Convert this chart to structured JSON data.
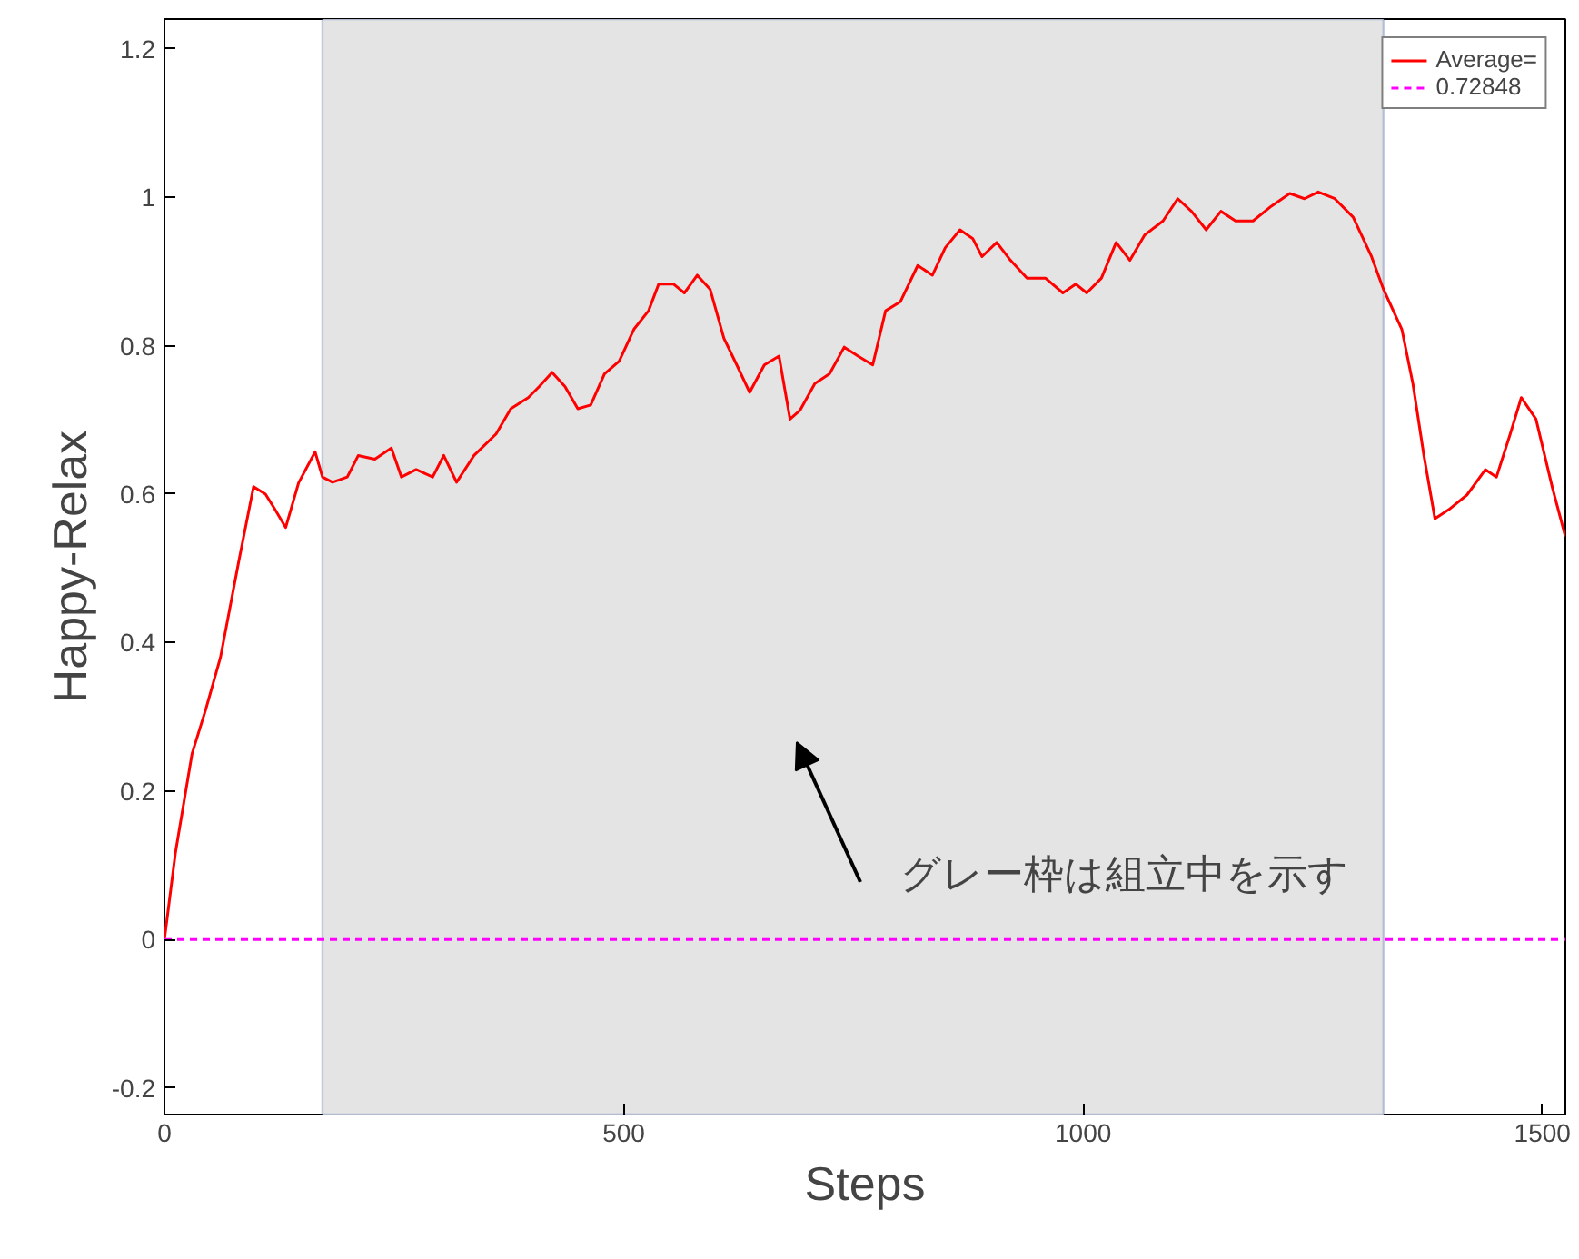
{
  "chart_data": {
    "type": "line",
    "xlabel": "Steps",
    "ylabel": "Happy-Relax",
    "xlim": [
      0,
      1525
    ],
    "ylim": [
      -0.236,
      1.24
    ],
    "xticks": [
      0,
      500,
      1000,
      1500
    ],
    "yticks": [
      -0.2,
      0,
      0.2,
      0.4,
      0.6,
      0.8,
      1,
      1.2
    ],
    "grid": false,
    "legend": "top right",
    "series": [
      {
        "name": "Average=",
        "color": "#ff0000",
        "line_style": "solid",
        "x": [
          0,
          12,
          30,
          45,
          61,
          81,
          97,
          110,
          120,
          132,
          146,
          164,
          172,
          183,
          199,
          211,
          229,
          247,
          258,
          274,
          292,
          304,
          318,
          337,
          361,
          377,
          396,
          408,
          422,
          436,
          450,
          464,
          479,
          495,
          511,
          527,
          538,
          554,
          566,
          580,
          594,
          609,
          623,
          637,
          653,
          669,
          681,
          692,
          708,
          724,
          740,
          755,
          771,
          785,
          801,
          820,
          836,
          850,
          866,
          880,
          890,
          906,
          921,
          939,
          959,
          978,
          992,
          1004,
          1020,
          1036,
          1051,
          1067,
          1087,
          1103,
          1118,
          1134,
          1150,
          1166,
          1185,
          1205,
          1225,
          1241,
          1256,
          1274,
          1294,
          1314,
          1327,
          1347,
          1359,
          1371,
          1383,
          1398,
          1418,
          1438,
          1450,
          1465,
          1477,
          1493,
          1511,
          1525
        ],
        "values": [
          0,
          0.117,
          0.25,
          0.31,
          0.38,
          0.51,
          0.61,
          0.6,
          0.58,
          0.555,
          0.615,
          0.657,
          0.623,
          0.616,
          0.623,
          0.652,
          0.647,
          0.662,
          0.623,
          0.633,
          0.623,
          0.652,
          0.616,
          0.652,
          0.681,
          0.715,
          0.73,
          0.745,
          0.764,
          0.745,
          0.715,
          0.72,
          0.762,
          0.779,
          0.822,
          0.847,
          0.883,
          0.883,
          0.871,
          0.895,
          0.876,
          0.81,
          0.774,
          0.737,
          0.774,
          0.786,
          0.701,
          0.713,
          0.749,
          0.762,
          0.798,
          0.786,
          0.774,
          0.847,
          0.859,
          0.908,
          0.895,
          0.932,
          0.956,
          0.944,
          0.92,
          0.939,
          0.915,
          0.891,
          0.891,
          0.871,
          0.883,
          0.871,
          0.891,
          0.939,
          0.915,
          0.949,
          0.968,
          0.998,
          0.981,
          0.956,
          0.981,
          0.968,
          0.968,
          0.988,
          1.005,
          0.998,
          1.007,
          0.998,
          0.973,
          0.92,
          0.876,
          0.822,
          0.749,
          0.652,
          0.567,
          0.579,
          0.599,
          0.633,
          0.623,
          0.681,
          0.73,
          0.701,
          0.608,
          0.543
        ]
      },
      {
        "name": "0.72848",
        "color": "#ff00ff",
        "line_style": "dashed",
        "x": [
          0,
          1525
        ],
        "values": [
          0,
          0
        ]
      }
    ],
    "bands": [
      {
        "axis": "x",
        "from": 172,
        "to": 1327,
        "color": "#e4e4e4"
      }
    ],
    "annotations": [
      "グレー枠は組立中を示す"
    ]
  }
}
